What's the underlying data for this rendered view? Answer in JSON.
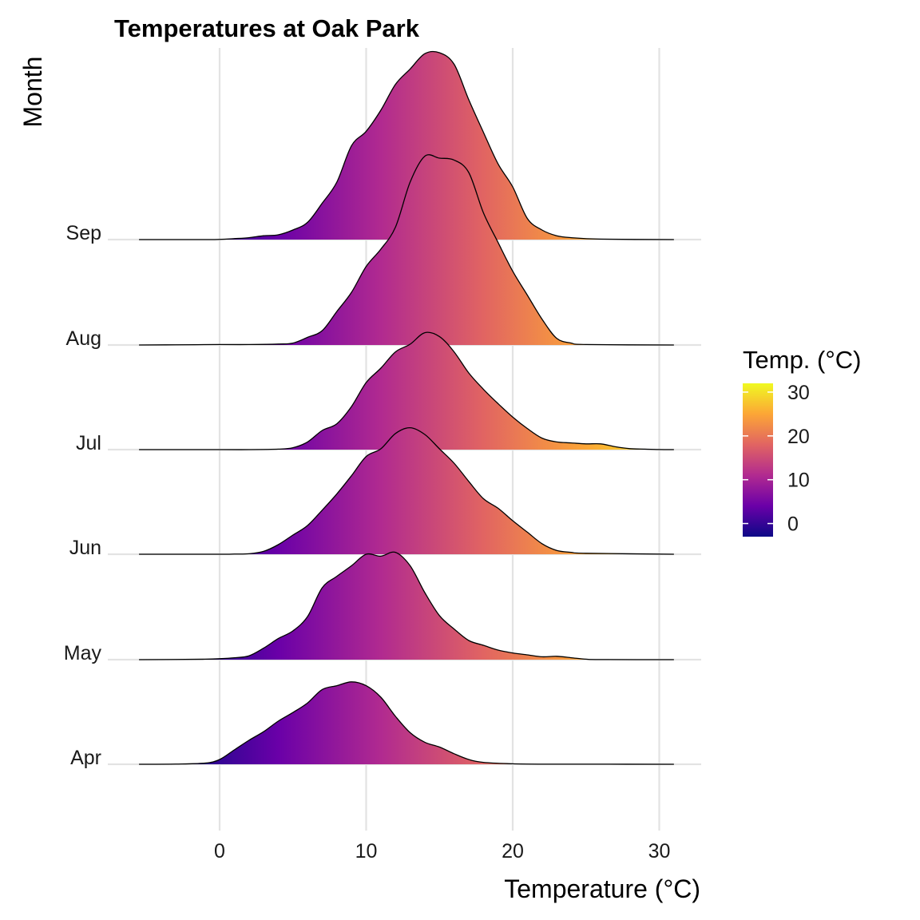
{
  "chart_data": {
    "type": "ridgeline",
    "title": "Temperatures at Oak Park",
    "xlabel": "Temperature (°C)",
    "ylabel": "Month",
    "xlim": [
      -5.5,
      31
    ],
    "x_ticks": [
      0,
      10,
      20,
      30
    ],
    "categories": [
      "Apr",
      "May",
      "Jun",
      "Jul",
      "Aug",
      "Sep"
    ],
    "grid": true,
    "legend": {
      "title": "Temp. (°C)",
      "placement": "right",
      "range": [
        -3,
        32
      ],
      "ticks": [
        0,
        10,
        20,
        30
      ],
      "colors": [
        "#0d0887",
        "#6a00a8",
        "#b12a90",
        "#e16462",
        "#fca636",
        "#f0f921"
      ]
    },
    "series": [
      {
        "name": "Apr",
        "x": [
          -5.5,
          -3,
          -1,
          0,
          1,
          2,
          3,
          4,
          5,
          6,
          7,
          8,
          9,
          10,
          11,
          12,
          13,
          14,
          15,
          16,
          17,
          18,
          20,
          22,
          25,
          31
        ],
        "y": [
          0,
          0.002,
          0.012,
          0.05,
          0.15,
          0.25,
          0.34,
          0.45,
          0.54,
          0.64,
          0.78,
          0.82,
          0.86,
          0.82,
          0.7,
          0.5,
          0.33,
          0.23,
          0.18,
          0.11,
          0.05,
          0.02,
          0.005,
          0.001,
          0.001,
          0
        ]
      },
      {
        "name": "May",
        "x": [
          -5.5,
          -3,
          -1,
          0,
          1,
          2,
          3,
          4,
          5,
          6,
          7,
          8,
          9,
          10,
          11,
          12,
          13,
          14,
          15,
          16,
          17,
          18,
          19,
          20,
          21,
          22,
          23,
          24,
          25,
          26,
          31
        ],
        "y": [
          0,
          0.002,
          0.005,
          0.01,
          0.02,
          0.04,
          0.12,
          0.22,
          0.3,
          0.45,
          0.75,
          0.87,
          0.98,
          1.1,
          1.08,
          1.12,
          0.98,
          0.7,
          0.46,
          0.32,
          0.2,
          0.15,
          0.1,
          0.07,
          0.05,
          0.03,
          0.035,
          0.02,
          0.005,
          0.001,
          0
        ]
      },
      {
        "name": "Jun",
        "x": [
          -5.5,
          0,
          1,
          2,
          3,
          4,
          5,
          6,
          7,
          8,
          9,
          10,
          11,
          12,
          13,
          14,
          15,
          16,
          17,
          18,
          19,
          20,
          21,
          22,
          23,
          24,
          25,
          31
        ],
        "y": [
          0,
          0,
          0.002,
          0.005,
          0.03,
          0.1,
          0.2,
          0.3,
          0.46,
          0.63,
          0.82,
          1.02,
          1.1,
          1.26,
          1.32,
          1.25,
          1.1,
          0.95,
          0.76,
          0.58,
          0.48,
          0.35,
          0.23,
          0.11,
          0.04,
          0.02,
          0.01,
          0
        ]
      },
      {
        "name": "Jul",
        "x": [
          -5.5,
          0,
          2,
          4,
          5,
          6,
          7,
          8,
          9,
          10,
          11,
          12,
          13,
          14,
          15,
          16,
          17,
          18,
          19,
          20,
          21,
          22,
          23,
          24,
          25,
          26,
          27,
          28,
          29,
          30,
          31
        ],
        "y": [
          0,
          0,
          0,
          0.005,
          0.02,
          0.08,
          0.2,
          0.27,
          0.45,
          0.7,
          0.85,
          1.02,
          1.1,
          1.22,
          1.18,
          1.02,
          0.8,
          0.63,
          0.48,
          0.34,
          0.22,
          0.12,
          0.08,
          0.07,
          0.06,
          0.06,
          0.03,
          0.01,
          0.005,
          0.001,
          0
        ]
      },
      {
        "name": "Aug",
        "x": [
          -5.5,
          -3,
          0,
          2,
          4,
          5,
          6,
          7,
          8,
          9,
          10,
          11,
          12,
          13,
          14,
          15,
          16,
          17,
          18,
          19,
          20,
          21,
          22,
          23,
          24,
          25,
          31
        ],
        "y": [
          0,
          0.002,
          0.005,
          0.005,
          0.01,
          0.02,
          0.08,
          0.15,
          0.35,
          0.55,
          0.82,
          1.0,
          1.23,
          1.7,
          1.97,
          1.95,
          1.93,
          1.8,
          1.38,
          1.07,
          0.77,
          0.52,
          0.27,
          0.07,
          0.02,
          0.005,
          0
        ]
      },
      {
        "name": "Sep",
        "x": [
          -5.5,
          -1,
          0,
          1,
          2,
          3,
          4,
          5,
          6,
          7,
          8,
          9,
          10,
          11,
          12,
          13,
          14,
          15,
          16,
          17,
          18,
          19,
          20,
          21,
          22,
          23,
          24,
          26,
          31
        ],
        "y": [
          0,
          0,
          0.002,
          0.01,
          0.02,
          0.04,
          0.05,
          0.1,
          0.18,
          0.38,
          0.6,
          0.98,
          1.13,
          1.35,
          1.62,
          1.78,
          1.94,
          1.95,
          1.83,
          1.46,
          1.12,
          0.79,
          0.55,
          0.22,
          0.1,
          0.04,
          0.02,
          0.005,
          0
        ]
      }
    ]
  }
}
